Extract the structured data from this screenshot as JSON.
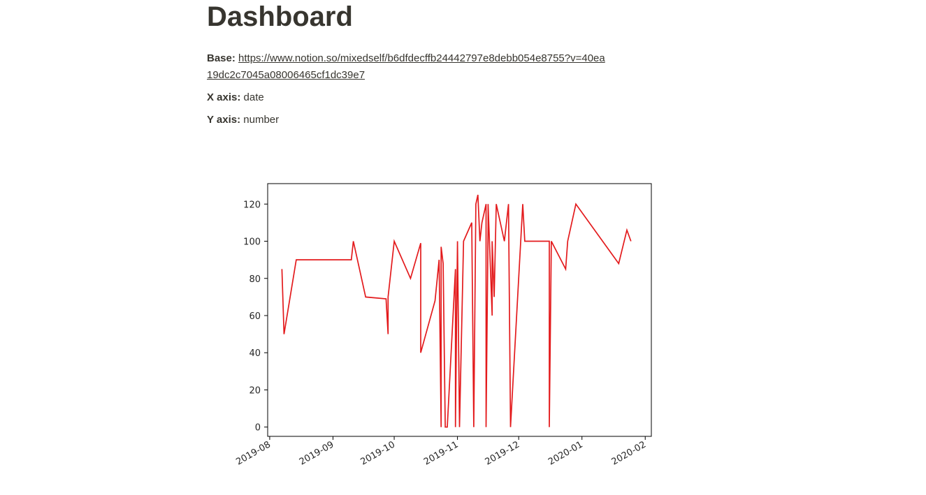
{
  "page": {
    "title": "Dashboard",
    "base_label": "Base:",
    "base_url": "https://www.notion.so/mixedself/b6dfdecffb24442797e8debb054e8755?v=40ea19dc2c7045a08006465cf1dc39e7",
    "x_axis_label": "X axis:",
    "x_axis_value": "date",
    "y_axis_label": "Y axis:",
    "y_axis_value": "number"
  },
  "chart_data": {
    "type": "line",
    "title": "",
    "xlabel": "",
    "ylabel": "",
    "grid": false,
    "series_color": "#e31a1c",
    "ylim": [
      -5,
      131
    ],
    "xlim": [
      "2019-07-31",
      "2020-02-04"
    ],
    "y_ticks": [
      0,
      20,
      40,
      60,
      80,
      100,
      120
    ],
    "x_ticks": [
      "2019-08",
      "2019-09",
      "2019-10",
      "2019-11",
      "2019-12",
      "2020-01",
      "2020-02"
    ],
    "x": [
      "2019-08-07",
      "2019-08-08",
      "2019-08-14",
      "2019-09-10",
      "2019-09-11",
      "2019-09-17",
      "2019-09-27",
      "2019-09-28",
      "2019-09-28",
      "2019-10-01",
      "2019-10-09",
      "2019-10-14",
      "2019-10-14",
      "2019-10-21",
      "2019-10-23",
      "2019-10-24",
      "2019-10-24",
      "2019-10-25",
      "2019-10-26",
      "2019-10-27",
      "2019-10-31",
      "2019-10-31",
      "2019-11-01",
      "2019-11-02",
      "2019-11-02",
      "2019-11-04",
      "2019-11-08",
      "2019-11-09",
      "2019-11-10",
      "2019-11-11",
      "2019-11-12",
      "2019-11-13",
      "2019-11-15",
      "2019-11-15",
      "2019-11-16",
      "2019-11-16",
      "2019-11-18",
      "2019-11-18",
      "2019-11-19",
      "2019-11-20",
      "2019-11-24",
      "2019-11-26",
      "2019-11-27",
      "2019-12-03",
      "2019-12-04",
      "2019-12-11",
      "2019-12-16",
      "2019-12-16",
      "2019-12-17",
      "2019-12-24",
      "2019-12-25",
      "2019-12-29",
      "2020-01-19",
      "2020-01-23",
      "2020-01-25"
    ],
    "values": [
      85,
      50,
      90,
      90,
      100,
      70,
      69,
      50,
      70,
      100,
      80,
      99,
      40,
      68,
      90,
      0,
      97,
      88,
      0,
      0,
      85,
      0,
      100,
      0,
      0,
      100,
      110,
      0,
      120,
      125,
      100,
      110,
      120,
      0,
      108,
      120,
      60,
      100,
      70,
      120,
      100,
      120,
      0,
      120,
      100,
      100,
      100,
      0,
      100,
      85,
      100,
      120,
      88,
      106,
      100
    ]
  }
}
